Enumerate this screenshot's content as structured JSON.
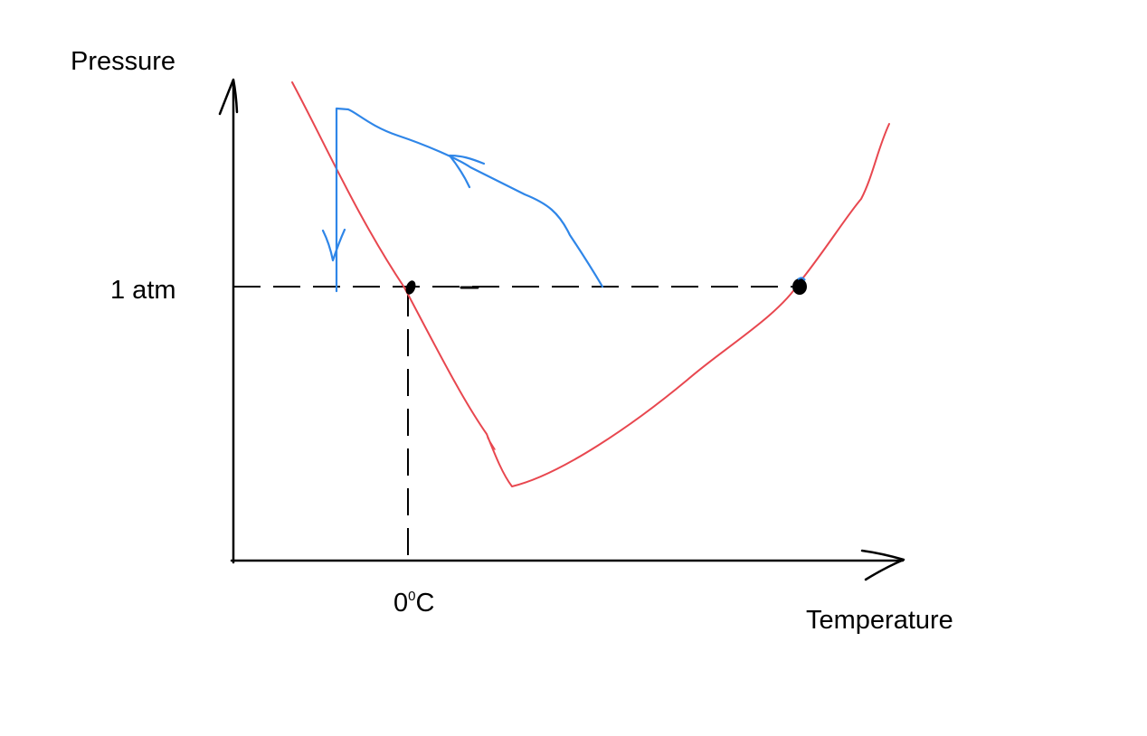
{
  "diagram": {
    "y_axis_label": "Pressure",
    "x_axis_label": "Temperature",
    "pressure_mark_label": "1 atm",
    "temperature_mark": {
      "value": "0",
      "superscript": "0",
      "unit": "C"
    }
  },
  "colors": {
    "axes": "#000000",
    "phase_boundary": "#e8474f",
    "process_path": "#2f86e8",
    "points": "#000000"
  }
}
